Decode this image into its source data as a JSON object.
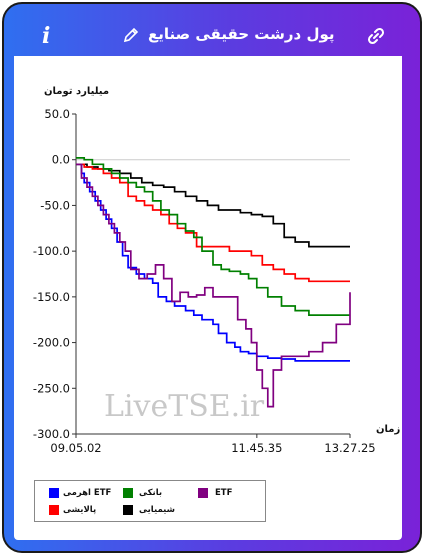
{
  "header": {
    "title": "پول درشت حقیقی صنایع",
    "info_glyph": "i",
    "icons": [
      "info-icon",
      "pencil-icon",
      "link-icon"
    ]
  },
  "chart_data": {
    "type": "line",
    "ylabel": "میلیارد تومان",
    "xlabel": "زمان",
    "ylim": [
      -300,
      50
    ],
    "yticks": [
      "50.0",
      "0.0",
      "-50.0",
      "-100.0",
      "-150.0",
      "-200.0",
      "-250.0",
      "-300.0"
    ],
    "ytick_values": [
      50,
      0,
      -50,
      -100,
      -150,
      -200,
      -250,
      -300
    ],
    "xticks": [
      "09.05.02",
      "11.45.35",
      "13.27.25"
    ],
    "xtick_positions": [
      0,
      0.66,
      1
    ],
    "grid": "y-zero-line",
    "watermark": "LiveTSE.ir",
    "legend_position": "bottom-left",
    "series": [
      {
        "name": "ETF اهرمی",
        "color": "#0000ff",
        "x": [
          0,
          0.02,
          0.03,
          0.05,
          0.07,
          0.09,
          0.11,
          0.13,
          0.15,
          0.17,
          0.19,
          0.22,
          0.25,
          0.28,
          0.3,
          0.33,
          0.36,
          0.4,
          0.43,
          0.46,
          0.5,
          0.52,
          0.55,
          0.58,
          0.6,
          0.63,
          0.66,
          0.7,
          0.75,
          0.8,
          0.85,
          0.9,
          1
        ],
        "y": [
          -5,
          -15,
          -25,
          -35,
          -45,
          -55,
          -65,
          -75,
          -90,
          -105,
          -118,
          -125,
          -130,
          -135,
          -150,
          -155,
          -160,
          -165,
          -170,
          -175,
          -180,
          -190,
          -200,
          -205,
          -210,
          -212,
          -215,
          -217,
          -218,
          -220,
          -220,
          -220,
          -220
        ]
      },
      {
        "name": "بانکی",
        "color": "#008000",
        "x": [
          0,
          0.03,
          0.06,
          0.1,
          0.13,
          0.16,
          0.19,
          0.22,
          0.25,
          0.28,
          0.31,
          0.34,
          0.37,
          0.4,
          0.43,
          0.46,
          0.5,
          0.53,
          0.56,
          0.6,
          0.63,
          0.66,
          0.7,
          0.75,
          0.8,
          0.85,
          0.9,
          1
        ],
        "y": [
          2,
          0,
          -5,
          -10,
          -15,
          -20,
          -25,
          -30,
          -35,
          -45,
          -55,
          -60,
          -70,
          -78,
          -85,
          -100,
          -115,
          -120,
          -122,
          -125,
          -130,
          -140,
          -150,
          -160,
          -165,
          -170,
          -170,
          -170
        ]
      },
      {
        "name": "ETF",
        "color": "#800080",
        "x": [
          0,
          0.02,
          0.04,
          0.06,
          0.08,
          0.1,
          0.12,
          0.14,
          0.16,
          0.18,
          0.2,
          0.23,
          0.26,
          0.29,
          0.32,
          0.35,
          0.38,
          0.41,
          0.44,
          0.47,
          0.5,
          0.53,
          0.56,
          0.59,
          0.62,
          0.64,
          0.66,
          0.68,
          0.7,
          0.72,
          0.75,
          0.8,
          0.85,
          0.9,
          0.95,
          1
        ],
        "y": [
          -5,
          -20,
          -30,
          -40,
          -50,
          -60,
          -70,
          -80,
          -90,
          -100,
          -120,
          -130,
          -125,
          -115,
          -130,
          -155,
          -145,
          -150,
          -148,
          -140,
          -150,
          -150,
          -150,
          -175,
          -185,
          -200,
          -230,
          -250,
          -270,
          -230,
          -215,
          -215,
          -210,
          -200,
          -180,
          -145
        ]
      },
      {
        "name": "پالایشی",
        "color": "#ff0000",
        "x": [
          0,
          0.03,
          0.06,
          0.1,
          0.13,
          0.16,
          0.19,
          0.22,
          0.25,
          0.28,
          0.31,
          0.34,
          0.37,
          0.4,
          0.44,
          0.48,
          0.52,
          0.56,
          0.6,
          0.64,
          0.68,
          0.72,
          0.76,
          0.8,
          0.85,
          0.9,
          1
        ],
        "y": [
          -5,
          -8,
          -10,
          -15,
          -20,
          -25,
          -40,
          -45,
          -50,
          -55,
          -60,
          -70,
          -75,
          -80,
          -95,
          -95,
          -95,
          -100,
          -100,
          -105,
          -115,
          -120,
          -125,
          -130,
          -133,
          -133,
          -133
        ]
      },
      {
        "name": "شیمیایی",
        "color": "#000000",
        "x": [
          0,
          0.04,
          0.08,
          0.12,
          0.16,
          0.2,
          0.24,
          0.28,
          0.32,
          0.36,
          0.4,
          0.44,
          0.48,
          0.52,
          0.56,
          0.6,
          0.64,
          0.68,
          0.72,
          0.76,
          0.8,
          0.85,
          0.9,
          1
        ],
        "y": [
          -5,
          -8,
          -10,
          -12,
          -15,
          -20,
          -25,
          -28,
          -30,
          -35,
          -40,
          -45,
          -50,
          -55,
          -55,
          -58,
          -60,
          -62,
          -70,
          -85,
          -90,
          -95,
          -95,
          -95
        ]
      }
    ]
  }
}
